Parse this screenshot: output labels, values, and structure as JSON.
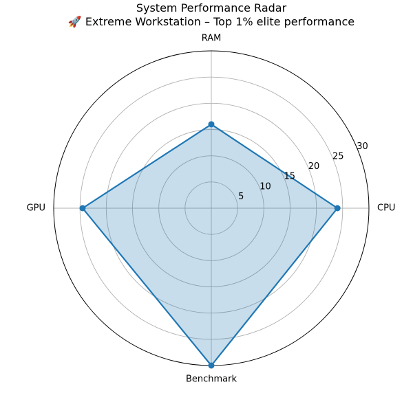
{
  "chart_data": {
    "type": "radar",
    "title": "System Performance Radar",
    "subtitle": "🚀 Extreme Workstation – Top 1% elite performance",
    "categories": [
      "CPU",
      "RAM",
      "GPU",
      "Benchmark"
    ],
    "series": [
      {
        "values": [
          24,
          16,
          24.5,
          30
        ]
      }
    ],
    "rlim": [
      0,
      30
    ],
    "rticks": [
      5,
      10,
      15,
      20,
      25,
      30
    ],
    "grid": true,
    "legend": "none",
    "colors": {
      "line": "#1f77b4",
      "fill": "#1f77b4",
      "grid": "#b0b0b0",
      "frame": "#000000"
    }
  }
}
